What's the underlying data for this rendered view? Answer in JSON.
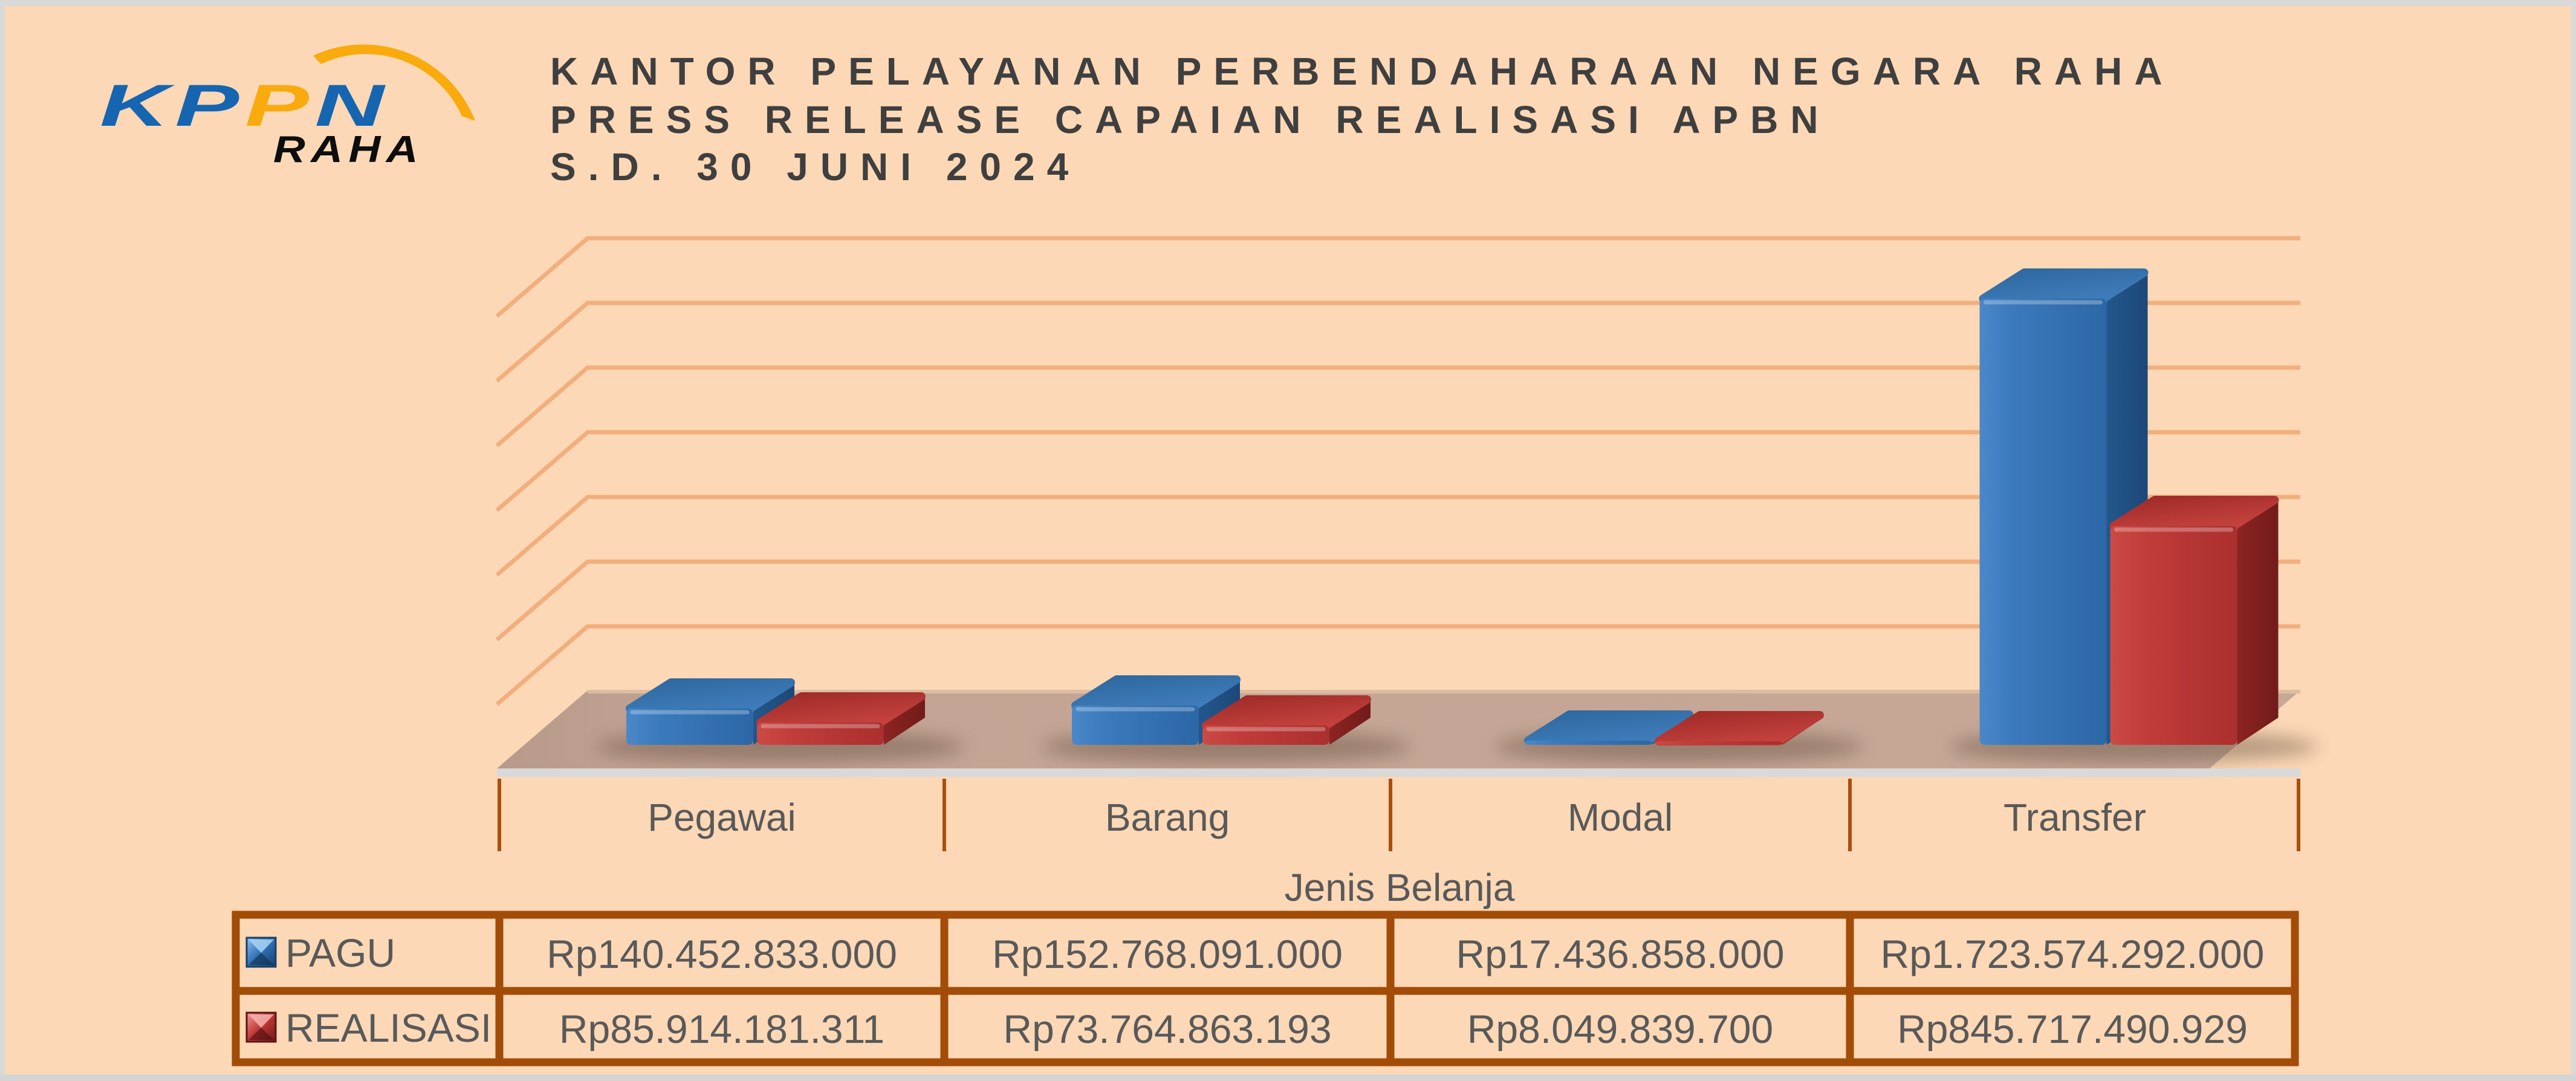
{
  "header": {
    "logo": {
      "text": "KPPN",
      "letters": [
        "K",
        "P",
        "P",
        "N"
      ],
      "letter_colors": [
        "#1565b0",
        "#1565b0",
        "#f9ab0d",
        "#1565b0"
      ],
      "subtext": "RAHA",
      "swoosh_color": "#f9ab0d"
    },
    "title_lines": [
      "KANTOR PELAYANAN PERBENDAHARAAN NEGARA RAHA",
      "PRESS RELEASE CAPAIAN REALISASI APBN",
      "S.D. 30 JUNI 2024"
    ]
  },
  "chart_data": {
    "type": "bar",
    "variant": "3d-clustered-column",
    "title": "",
    "categories": [
      "Pegawai",
      "Barang",
      "Modal",
      "Transfer"
    ],
    "series": [
      {
        "name": "PAGU",
        "color": "#3172b4",
        "values": [
          140452833000,
          152768091000,
          17436858000,
          1723574292000
        ],
        "formatted": [
          "Rp140.452.833.000",
          "Rp152.768.091.000",
          "Rp17.436.858.000",
          "Rp1.723.574.292.000"
        ]
      },
      {
        "name": "REALISASI",
        "color": "#be3a39",
        "values": [
          85914181311,
          73764863193,
          8049839700,
          845717490929
        ],
        "formatted": [
          "Rp85.914.181.311",
          "Rp73.764.863.193",
          "Rp8.049.839.700",
          "Rp845.717.490.929"
        ]
      }
    ],
    "xlabel": "Jenis Belanja",
    "ylabel": "",
    "value_axis_labels_visible": false,
    "legend_position": "table-left",
    "grid": true,
    "background_color": "#fcd8b6",
    "gridline_color": "#f2ae7d",
    "floor_color": "#c3a494",
    "table_border_color": "#a24c08",
    "text_color": "#595959"
  }
}
